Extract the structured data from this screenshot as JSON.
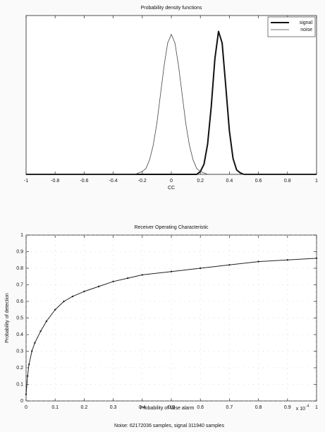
{
  "chart_data": [
    {
      "type": "line",
      "title": "Probability density functions",
      "xlabel": "CC",
      "x": [
        -1,
        -0.25,
        -0.225,
        -0.2,
        -0.175,
        -0.15,
        -0.125,
        -0.1,
        -0.075,
        -0.05,
        -0.025,
        0,
        0.025,
        0.05,
        0.075,
        0.1,
        0.125,
        0.15,
        0.175,
        0.2,
        0.225,
        0.25,
        0.275,
        0.3,
        0.325,
        0.35,
        0.375,
        0.4,
        0.425,
        0.45,
        0.475,
        0.5,
        1
      ],
      "series": [
        {
          "name": "signal",
          "color": "#111111",
          "values": [
            0,
            0,
            0,
            0,
            0,
            0,
            0,
            0,
            0,
            0,
            0,
            0,
            0,
            0,
            0,
            0,
            0,
            0,
            0,
            0.02,
            0.07,
            0.21,
            0.47,
            0.8,
            0.99,
            0.91,
            0.61,
            0.3,
            0.11,
            0.03,
            0.01,
            0,
            0
          ]
        },
        {
          "name": "noise",
          "color": "#444444",
          "values": [
            0,
            0,
            0.01,
            0.02,
            0.04,
            0.1,
            0.2,
            0.35,
            0.55,
            0.75,
            0.91,
            0.97,
            0.91,
            0.75,
            0.55,
            0.35,
            0.2,
            0.1,
            0.04,
            0.02,
            0.01,
            0,
            0,
            0,
            0,
            0,
            0,
            0,
            0,
            0,
            0,
            0,
            0
          ]
        }
      ],
      "xlim": [
        -1,
        1
      ],
      "xticks": [
        -1,
        -0.8,
        -0.6,
        -0.4,
        -0.2,
        0,
        0.2,
        0.4,
        0.6,
        0.8,
        1
      ],
      "ylim": [
        0,
        1.1
      ],
      "grid": false,
      "legend": "upper right"
    },
    {
      "type": "line",
      "title": "Receiver Operating Characteristic",
      "xlabel": "Probability of false alarm",
      "ylabel": "Probability of detection",
      "x_multiplier": "x 10",
      "x_multiplier_exponent": "-4",
      "x": [
        0,
        0.005,
        0.01,
        0.02,
        0.03,
        0.05,
        0.07,
        0.1,
        0.13,
        0.16,
        0.2,
        0.25,
        0.3,
        0.35,
        0.4,
        0.5,
        0.6,
        0.7,
        0.8,
        0.9,
        1
      ],
      "values": [
        0.04,
        0.15,
        0.22,
        0.3,
        0.35,
        0.42,
        0.48,
        0.55,
        0.6,
        0.63,
        0.66,
        0.69,
        0.72,
        0.74,
        0.76,
        0.78,
        0.8,
        0.82,
        0.84,
        0.85,
        0.86
      ],
      "color": "#222222",
      "markers": true,
      "xlim": [
        0,
        1
      ],
      "xticks": [
        0,
        0.1,
        0.2,
        0.3,
        0.4,
        0.5,
        0.6,
        0.7,
        0.8,
        0.9,
        1
      ],
      "ylim": [
        0,
        1
      ],
      "yticks": [
        0,
        0.1,
        0.2,
        0.3,
        0.4,
        0.5,
        0.6,
        0.7,
        0.8,
        0.9,
        1
      ],
      "grid": true
    }
  ],
  "caption": "Noise: 62172036 samples, signal 311940 samples"
}
